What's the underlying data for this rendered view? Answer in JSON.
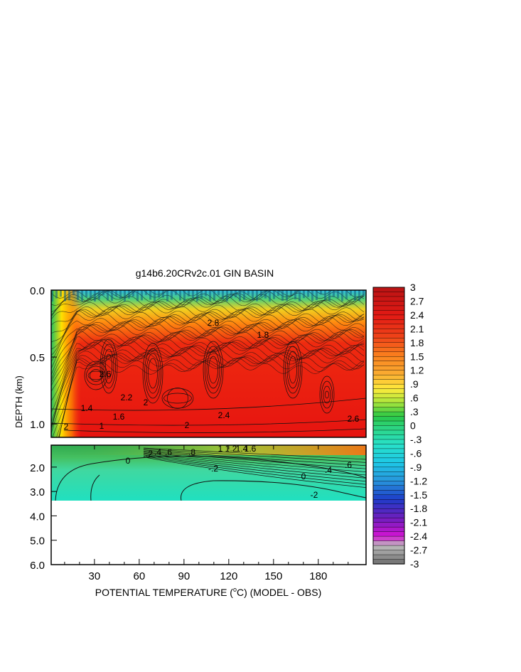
{
  "chart_data": {
    "type": "heatmap",
    "title": "g14b6.20CRv2c.01 GIN BASIN",
    "xlabel": "POTENTIAL TEMPERATURE (°C) (MODEL - OBS)",
    "xlabel_parts": {
      "before": "POTENTIAL TEMPERATURE (",
      "sup": "o",
      "after": "C) (MODEL - OBS)"
    },
    "ylabel": "DEPTH (km)",
    "x_ticks": [
      "30",
      "60",
      "90",
      "120",
      "150",
      "180"
    ],
    "x_tick_values": [
      30,
      60,
      90,
      120,
      150,
      180
    ],
    "xlim": [
      1,
      212
    ],
    "upper_panel": {
      "ylim": [
        0.0,
        1.1
      ],
      "y_ticks": [
        "0.0",
        "0.5",
        "1.0"
      ],
      "y_tick_values": [
        0.0,
        0.5,
        1.0
      ]
    },
    "lower_panel": {
      "ylim": [
        1.1,
        6.0
      ],
      "y_ticks": [
        "2.0",
        "3.0",
        "4.0",
        "5.0",
        "6.0"
      ],
      "y_tick_values": [
        2.0,
        3.0,
        4.0,
        5.0,
        6.0
      ],
      "data_bottom_depth": 3.4
    },
    "colorbar": {
      "labels": [
        "3",
        "2.7",
        "2.4",
        "2.1",
        "1.8",
        "1.5",
        "1.2",
        ".9",
        ".6",
        ".3",
        "0",
        "-.3",
        "-.6",
        "-.9",
        "-1.2",
        "-1.5",
        "-1.8",
        "-2.1",
        "-2.4",
        "-2.7",
        "-3"
      ],
      "range": [
        -3,
        3
      ]
    },
    "contour_labels_upper": [
      "2",
      "1.4",
      "1",
      "1.6",
      "2",
      "2.2",
      "2.4",
      "2.6",
      "2.8",
      "2",
      "1.8",
      "2.6"
    ],
    "contour_labels_lower": [
      "0",
      "-2",
      "-.2",
      "0",
      ".2",
      ".4",
      ".6",
      ".8",
      "1",
      "1.2",
      "1.4",
      "1.6",
      ".4",
      ".6"
    ]
  }
}
